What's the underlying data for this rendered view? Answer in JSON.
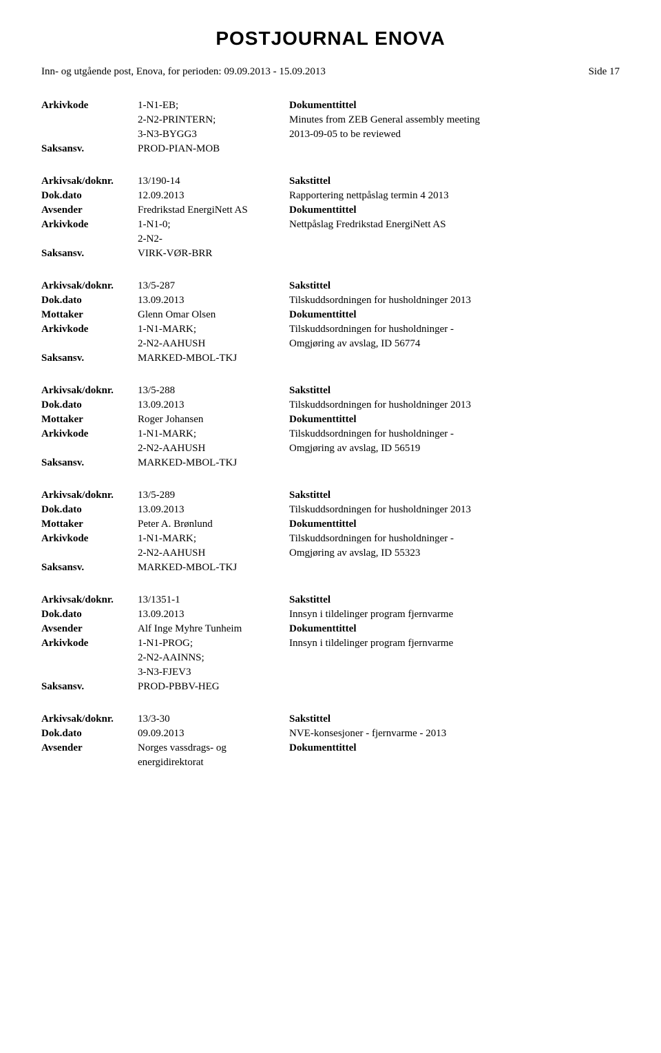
{
  "title": "POSTJOURNAL ENOVA",
  "period_line": "Inn- og utgående post, Enova, for perioden: 09.09.2013 - 15.09.2013",
  "page_side": "Side 17",
  "labels": {
    "arkivkode": "Arkivkode",
    "saksansv": "Saksansv.",
    "arkivsak": "Arkivsak/doknr.",
    "dokdato": "Dok.dato",
    "avsender": "Avsender",
    "mottaker": "Mottaker",
    "sakstittel": "Sakstittel",
    "dokumenttittel": "Dokumenttittel"
  },
  "top_entry": {
    "arkivkode_lines": [
      "1-N1-EB;",
      "2-N2-PRINTERN;",
      "3-N3-BYGG3"
    ],
    "saksansv": "PROD-PIAN-MOB",
    "doc_title_lines": [
      "Minutes from ZEB General assembly meeting",
      "2013-09-05 to be reviewed"
    ]
  },
  "entries": [
    {
      "arkivsak": "13/190-14",
      "dokdato": "12.09.2013",
      "party_label": "avsender",
      "party": "Fredrikstad EnergiNett AS",
      "sakstittel": "Rapportering nettpåslag termin 4 2013",
      "arkivkode_lines": [
        "1-N1-0;",
        "2-N2-"
      ],
      "doc_lines": [
        "Nettpåslag Fredrikstad EnergiNett AS"
      ],
      "saksansv": "VIRK-VØR-BRR"
    },
    {
      "arkivsak": "13/5-287",
      "dokdato": "13.09.2013",
      "party_label": "mottaker",
      "party": "Glenn Omar Olsen",
      "sakstittel": "Tilskuddsordningen for husholdninger 2013",
      "arkivkode_lines": [
        "1-N1-MARK;",
        "2-N2-AAHUSH"
      ],
      "doc_lines": [
        "Tilskuddsordningen for husholdninger -",
        "Omgjøring av avslag, ID 56774"
      ],
      "saksansv": "MARKED-MBOL-TKJ"
    },
    {
      "arkivsak": "13/5-288",
      "dokdato": "13.09.2013",
      "party_label": "mottaker",
      "party": "Roger Johansen",
      "sakstittel": "Tilskuddsordningen for husholdninger 2013",
      "arkivkode_lines": [
        "1-N1-MARK;",
        "2-N2-AAHUSH"
      ],
      "doc_lines": [
        "Tilskuddsordningen for husholdninger -",
        "Omgjøring av avslag, ID 56519"
      ],
      "saksansv": "MARKED-MBOL-TKJ"
    },
    {
      "arkivsak": "13/5-289",
      "dokdato": "13.09.2013",
      "party_label": "mottaker",
      "party": "Peter A. Brønlund",
      "sakstittel": "Tilskuddsordningen for husholdninger 2013",
      "arkivkode_lines": [
        "1-N1-MARK;",
        "2-N2-AAHUSH"
      ],
      "doc_lines": [
        "Tilskuddsordningen for husholdninger -",
        "Omgjøring av avslag, ID 55323"
      ],
      "saksansv": "MARKED-MBOL-TKJ"
    },
    {
      "arkivsak": "13/1351-1",
      "dokdato": "13.09.2013",
      "party_label": "avsender",
      "party": "Alf Inge Myhre Tunheim",
      "sakstittel": "Innsyn i tildelinger program fjernvarme",
      "arkivkode_lines": [
        "1-N1-PROG;",
        "2-N2-AAINNS;",
        "3-N3-FJEV3"
      ],
      "doc_lines": [
        "Innsyn i tildelinger program fjernvarme"
      ],
      "saksansv": "PROD-PBBV-HEG"
    },
    {
      "arkivsak": "13/3-30",
      "dokdato": "09.09.2013",
      "party_label": "avsender",
      "party": "Norges vassdrags- og",
      "party2": "energidirektorat",
      "sakstittel": "NVE-konsesjoner - fjernvarme - 2013",
      "arkivkode_lines": [],
      "doc_lines": [],
      "partial": true
    }
  ]
}
